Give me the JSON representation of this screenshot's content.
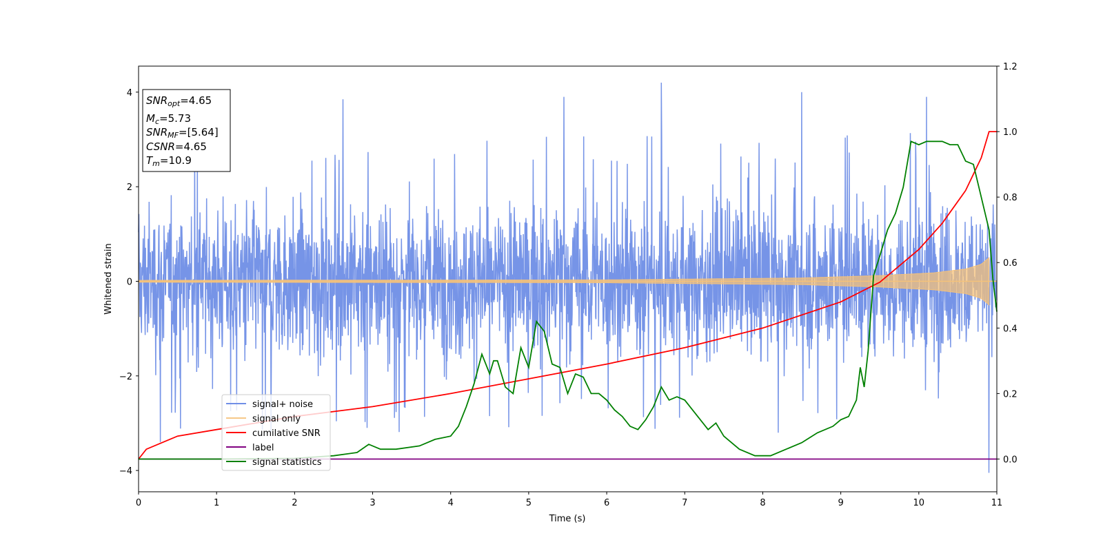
{
  "chart_data": {
    "type": "line",
    "xlabel": "Time (s)",
    "ylabel": "Whitened strain",
    "x_ticks": [
      0,
      1,
      2,
      3,
      4,
      5,
      6,
      7,
      8,
      9,
      10,
      11
    ],
    "y_ticks": [
      -4,
      -2,
      0,
      2,
      4
    ],
    "y2_ticks": [
      0.0,
      0.2,
      0.4,
      0.6,
      0.8,
      1.0,
      1.2
    ],
    "xlim": [
      0,
      11
    ],
    "ylim": [
      -4.45,
      4.55
    ],
    "y2lim": [
      -0.1,
      1.2
    ],
    "grid": false,
    "legend_placement": "lower-left",
    "colors": {
      "signal_noise": "#6f8ee6",
      "signal_only": "#f5c27a",
      "cumulative_snr": "#ff0000",
      "label": "#800080",
      "signal_statistics": "#008000"
    },
    "info_box": {
      "snr_opt": {
        "var": "SNR",
        "sub": "opt",
        "value": "=4.65"
      },
      "mc": {
        "var": "M",
        "sub": "c",
        "value": "=5.73"
      },
      "snr_mf": {
        "var": "SNR",
        "sub": "MF",
        "value": "=[5.64]"
      },
      "csnr": {
        "var": "CSNR",
        "sub": "",
        "value": "=4.65"
      },
      "tm": {
        "var": "T",
        "sub": "m",
        "value": "=10.9"
      }
    },
    "series": [
      {
        "name": "signal+ noise",
        "axis": "left",
        "kind": "noise",
        "x_range": [
          0,
          11
        ],
        "typical_range": [
          -2.2,
          2.2
        ],
        "extremes": [
          [
            0.28,
            -3.4
          ],
          [
            2.62,
            3.85
          ],
          [
            2.93,
            -3.1
          ],
          [
            4.5,
            -2.85
          ],
          [
            5.45,
            3.9
          ],
          [
            6.7,
            4.2
          ],
          [
            8.5,
            4.0
          ],
          [
            8.2,
            -3.2
          ],
          [
            10.1,
            3.9
          ],
          [
            10.9,
            -4.05
          ]
        ]
      },
      {
        "name": "signal only",
        "axis": "left",
        "kind": "chirp",
        "x_range": [
          0,
          10.9
        ],
        "envelope": [
          [
            0,
            0.02
          ],
          [
            6,
            0.03
          ],
          [
            8.5,
            0.07
          ],
          [
            9.5,
            0.12
          ],
          [
            10.2,
            0.18
          ],
          [
            10.6,
            0.26
          ],
          [
            10.8,
            0.36
          ],
          [
            10.9,
            0.5
          ]
        ]
      },
      {
        "name": "cumilative SNR",
        "axis": "right",
        "x": [
          0,
          0.1,
          0.5,
          1,
          2,
          3,
          4,
          5,
          6,
          7,
          8,
          9,
          9.5,
          10,
          10.3,
          10.6,
          10.8,
          10.9,
          11
        ],
        "values": [
          0.0,
          0.03,
          0.07,
          0.09,
          0.13,
          0.16,
          0.2,
          0.245,
          0.29,
          0.34,
          0.4,
          0.48,
          0.54,
          0.64,
          0.72,
          0.82,
          0.92,
          1.0,
          1.0
        ]
      },
      {
        "name": "label",
        "axis": "right",
        "x": [
          0,
          11
        ],
        "values": [
          0.0,
          0.0
        ]
      },
      {
        "name": "signal statistics",
        "axis": "right",
        "x": [
          0,
          1,
          2,
          2.5,
          2.8,
          2.95,
          3.1,
          3.3,
          3.6,
          3.8,
          4.0,
          4.1,
          4.2,
          4.3,
          4.4,
          4.45,
          4.5,
          4.55,
          4.6,
          4.7,
          4.8,
          4.9,
          5.0,
          5.1,
          5.2,
          5.3,
          5.4,
          5.5,
          5.6,
          5.7,
          5.8,
          5.9,
          6.0,
          6.1,
          6.2,
          6.3,
          6.4,
          6.5,
          6.6,
          6.7,
          6.8,
          6.9,
          7.0,
          7.1,
          7.2,
          7.3,
          7.4,
          7.5,
          7.7,
          7.9,
          8.1,
          8.3,
          8.5,
          8.7,
          8.9,
          9.0,
          9.1,
          9.2,
          9.25,
          9.3,
          9.35,
          9.42,
          9.5,
          9.6,
          9.7,
          9.8,
          9.9,
          10.0,
          10.1,
          10.2,
          10.3,
          10.4,
          10.5,
          10.6,
          10.7,
          10.8,
          10.9,
          10.95,
          11.0
        ],
        "values": [
          0.0,
          0.0,
          0.002,
          0.01,
          0.02,
          0.045,
          0.03,
          0.03,
          0.04,
          0.06,
          0.07,
          0.1,
          0.16,
          0.23,
          0.32,
          0.29,
          0.26,
          0.3,
          0.3,
          0.22,
          0.2,
          0.34,
          0.28,
          0.42,
          0.39,
          0.29,
          0.28,
          0.2,
          0.26,
          0.25,
          0.2,
          0.2,
          0.18,
          0.15,
          0.13,
          0.1,
          0.09,
          0.12,
          0.16,
          0.22,
          0.18,
          0.19,
          0.18,
          0.15,
          0.12,
          0.09,
          0.11,
          0.07,
          0.03,
          0.01,
          0.01,
          0.03,
          0.05,
          0.08,
          0.1,
          0.12,
          0.13,
          0.18,
          0.28,
          0.22,
          0.33,
          0.56,
          0.62,
          0.7,
          0.75,
          0.83,
          0.97,
          0.96,
          0.97,
          0.97,
          0.97,
          0.96,
          0.96,
          0.91,
          0.9,
          0.8,
          0.7,
          0.55,
          0.45
        ]
      }
    ]
  }
}
